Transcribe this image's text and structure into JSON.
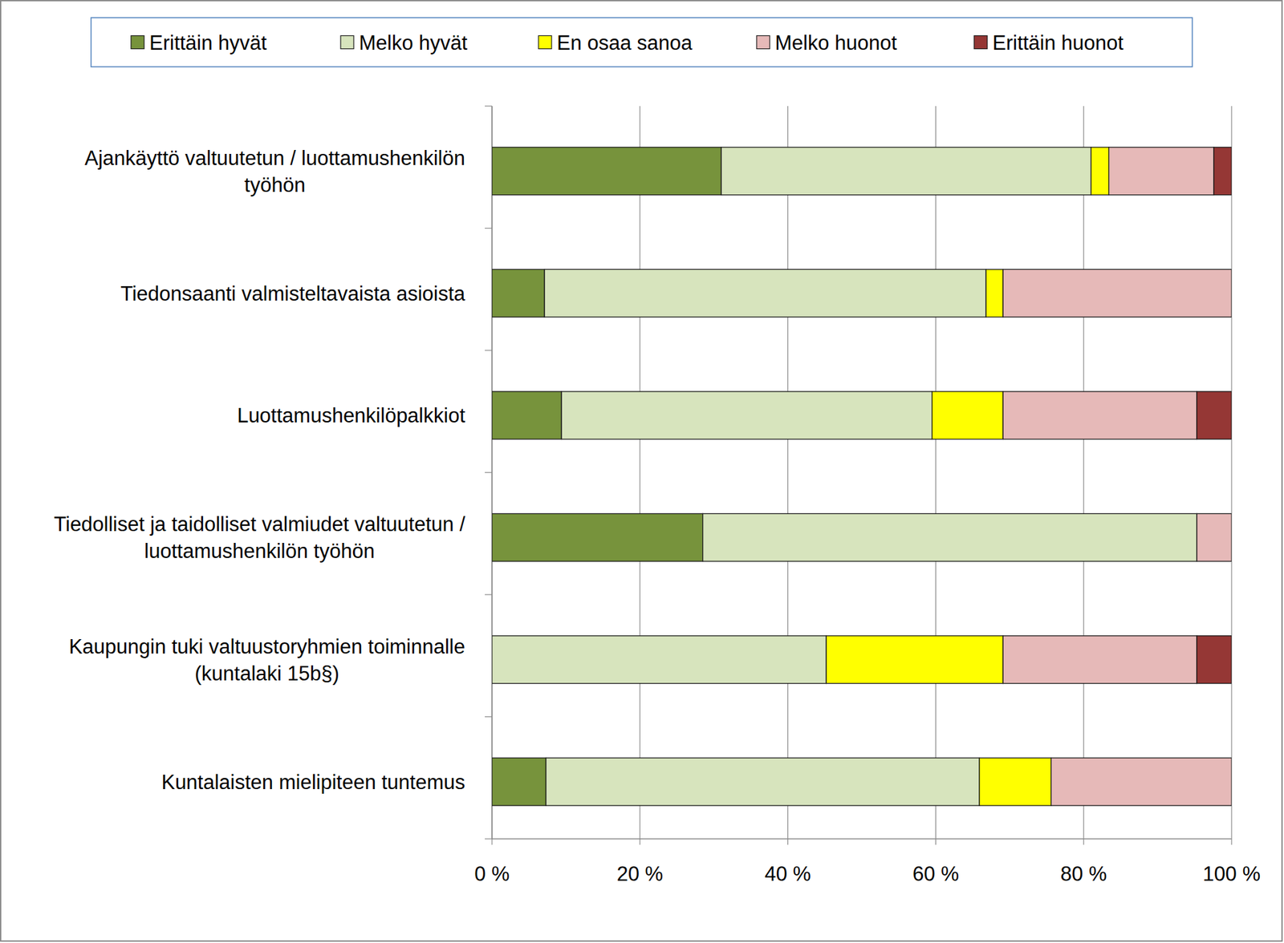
{
  "chart_data": {
    "type": "bar",
    "orientation": "horizontal",
    "stacked": true,
    "legend": "top",
    "grid": true,
    "categories": [
      "Ajankäyttö valtuutetun / luottamushenkilön työhön",
      "Tiedonsaanti valmisteltavaista asioista",
      "Luottamushenkilöpalkkiot",
      "Tiedolliset ja taidolliset valmiudet valtuutetun / luottamushenkilön työhön",
      "Kaupungin tuki valtuustoryhmien toiminnalle (kuntalaki 15b§)",
      "Kuntalaisten mielipiteen tuntemus"
    ],
    "series": [
      {
        "name": "Erittäin hyvät",
        "color": "#77933c",
        "values": [
          31.0,
          7.1,
          9.4,
          28.5,
          0,
          7.3
        ]
      },
      {
        "name": "Melko hyvät",
        "color": "#d7e4bd",
        "values": [
          50.0,
          59.7,
          50.1,
          66.8,
          45.2,
          58.6
        ]
      },
      {
        "name": "En osaa sanoa",
        "color": "#ffff00",
        "values": [
          2.4,
          2.3,
          9.6,
          0,
          23.9,
          9.7
        ]
      },
      {
        "name": "Melko huonot",
        "color": "#e6b9b8",
        "values": [
          14.2,
          30.9,
          26.2,
          4.7,
          26.2,
          24.4
        ]
      },
      {
        "name": "Erittäin huonot",
        "color": "#953735",
        "values": [
          2.4,
          0,
          4.7,
          0,
          4.7,
          0
        ]
      }
    ],
    "xlim": [
      0,
      100
    ],
    "xticks": [
      {
        "value": 0,
        "label": "0 %"
      },
      {
        "value": 20,
        "label": "20 %"
      },
      {
        "value": 40,
        "label": "40 %"
      },
      {
        "value": 60,
        "label": "60 %"
      },
      {
        "value": 80,
        "label": "80 %"
      },
      {
        "value": 100,
        "label": "100 %"
      }
    ]
  }
}
